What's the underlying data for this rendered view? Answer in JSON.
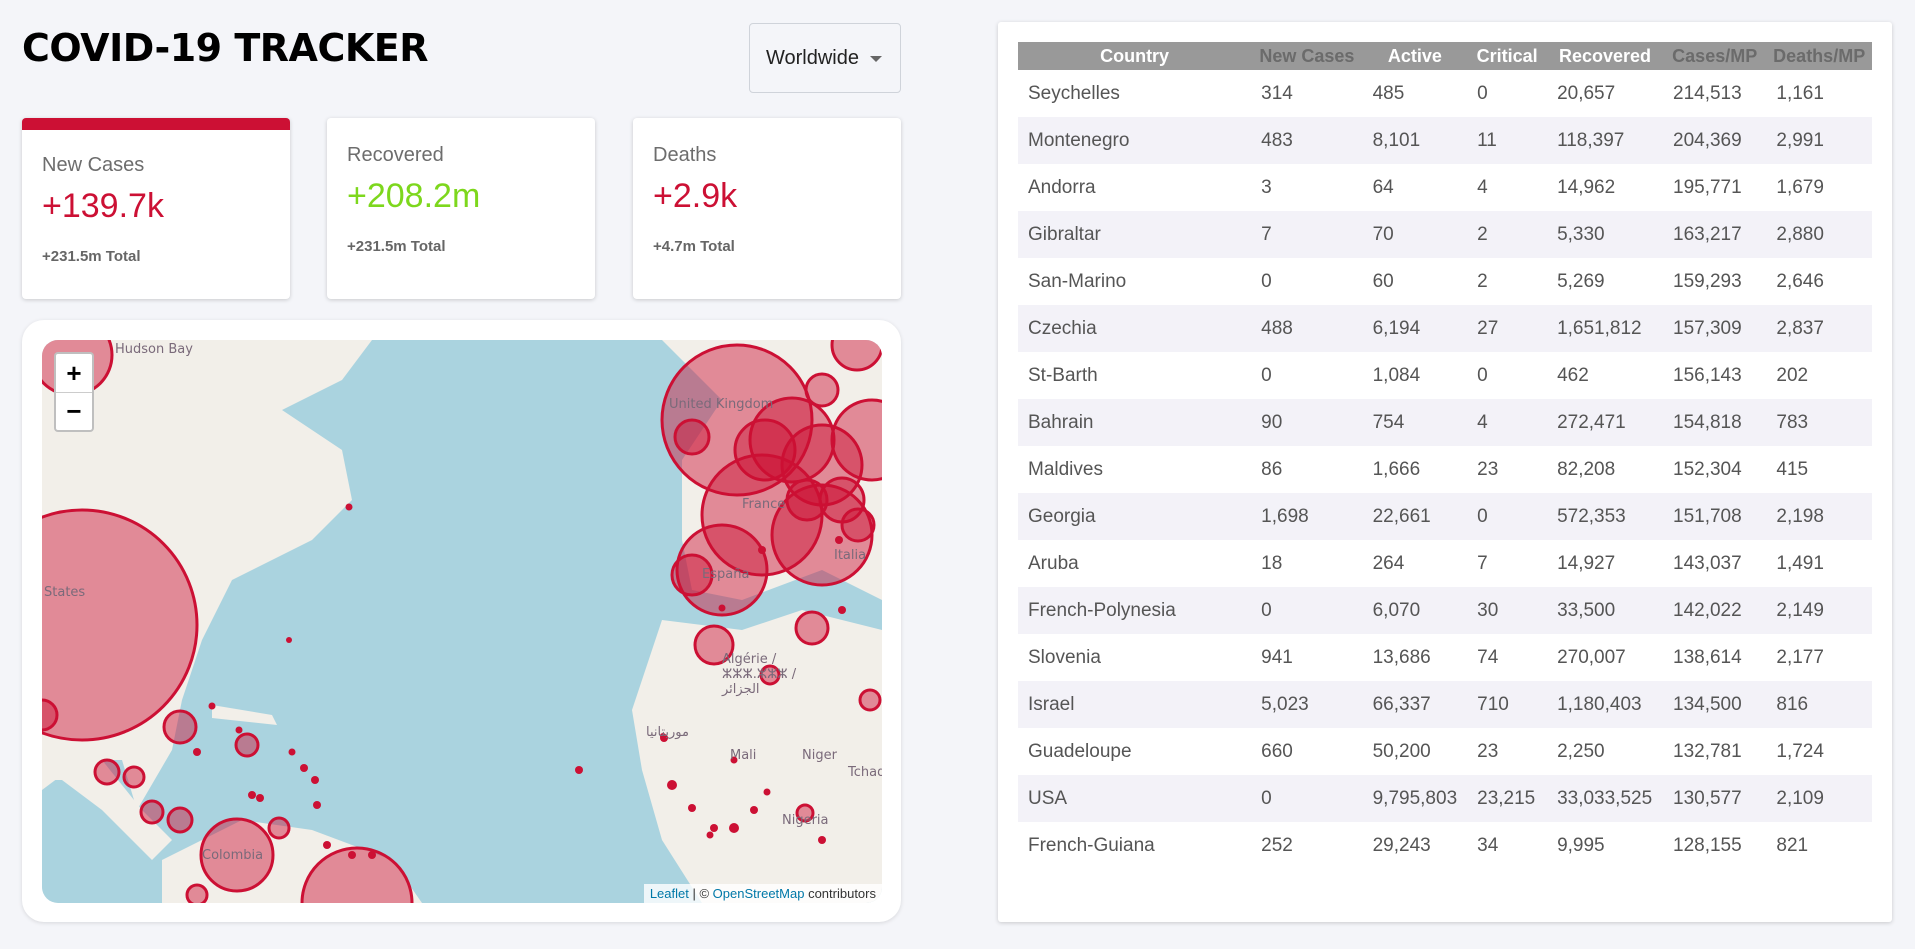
{
  "header": {
    "title": "COVID-19 TRACKER"
  },
  "country_select": {
    "selected": "Worldwide"
  },
  "stats": [
    {
      "label": "New Cases",
      "value": "+139.7k",
      "total": "+231.5m Total",
      "color": "#cc1034",
      "selected": true
    },
    {
      "label": "Recovered",
      "value": "+208.2m",
      "total": "+231.5m Total",
      "color": "#7dd71d",
      "selected": false
    },
    {
      "label": "Deaths",
      "value": "+2.9k",
      "total": "+4.7m Total",
      "color": "#cc1034",
      "selected": false
    }
  ],
  "map": {
    "zoom_in": "+",
    "zoom_out": "−",
    "attribution_leaflet": "Leaflet",
    "attribution_sep": " | © ",
    "attribution_osm": "OpenStreetMap",
    "attribution_tail": " contributors",
    "labels": [
      "Hudson Bay",
      "United Kingdom",
      "France",
      "España",
      "Italia",
      "States",
      "Algérie / ⵣⵣⵣ.ⵣⵣⵣ / الجزائر",
      "موريتانيا",
      "Mali",
      "Niger",
      "Tchad",
      "Nigeria",
      "Colombia"
    ]
  },
  "table": {
    "columns": [
      "Country",
      "New Cases",
      "Active",
      "Critical",
      "Recovered",
      "Cases/MP",
      "Deaths/MP"
    ],
    "rows": [
      [
        "Seychelles",
        "314",
        "485",
        "0",
        "20,657",
        "214,513",
        "1,161"
      ],
      [
        "Montenegro",
        "483",
        "8,101",
        "11",
        "118,397",
        "204,369",
        "2,991"
      ],
      [
        "Andorra",
        "3",
        "64",
        "4",
        "14,962",
        "195,771",
        "1,679"
      ],
      [
        "Gibraltar",
        "7",
        "70",
        "2",
        "5,330",
        "163,217",
        "2,880"
      ],
      [
        "San-Marino",
        "0",
        "60",
        "2",
        "5,269",
        "159,293",
        "2,646"
      ],
      [
        "Czechia",
        "488",
        "6,194",
        "27",
        "1,651,812",
        "157,309",
        "2,837"
      ],
      [
        "St-Barth",
        "0",
        "1,084",
        "0",
        "462",
        "156,143",
        "202"
      ],
      [
        "Bahrain",
        "90",
        "754",
        "4",
        "272,471",
        "154,818",
        "783"
      ],
      [
        "Maldives",
        "86",
        "1,666",
        "23",
        "82,208",
        "152,304",
        "415"
      ],
      [
        "Georgia",
        "1,698",
        "22,661",
        "0",
        "572,353",
        "151,708",
        "2,198"
      ],
      [
        "Aruba",
        "18",
        "264",
        "7",
        "14,927",
        "143,037",
        "1,491"
      ],
      [
        "French-Polynesia",
        "0",
        "6,070",
        "30",
        "33,500",
        "142,022",
        "2,149"
      ],
      [
        "Slovenia",
        "941",
        "13,686",
        "74",
        "270,007",
        "138,614",
        "2,177"
      ],
      [
        "Israel",
        "5,023",
        "66,337",
        "710",
        "1,180,403",
        "134,500",
        "816"
      ],
      [
        "Guadeloupe",
        "660",
        "50,200",
        "23",
        "2,250",
        "132,781",
        "1,724"
      ],
      [
        "USA",
        "0",
        "9,795,803",
        "23,215",
        "33,033,525",
        "130,577",
        "2,109"
      ],
      [
        "French-Guiana",
        "252",
        "29,243",
        "34",
        "9,995",
        "128,155",
        "821"
      ]
    ]
  }
}
